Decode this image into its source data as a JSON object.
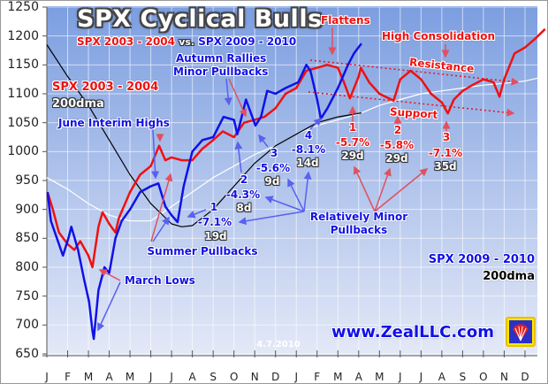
{
  "title": "SPX Cyclical Bulls",
  "subtitle": {
    "left": "SPX 2003 - 2004",
    "vs": "vs.",
    "right": "SPX 2009 - 2010"
  },
  "legend": {
    "red_label": "SPX 2003 - 2004",
    "red_dma": "200dma",
    "blue_label": "SPX 2009 - 2010",
    "blue_dma": "200dma"
  },
  "annotations": {
    "june_highs": "June Interim Highs",
    "autumn_1": "Autumn Rallies",
    "autumn_2": "Minor Pullbacks",
    "flattens": "Flattens",
    "high_consolidation": "High Consolidation",
    "resistance": "Resistance",
    "support": "Support",
    "relatively_1": "Relatively Minor",
    "relatively_2": "Pullbacks",
    "summer": "Summer Pullbacks",
    "march_lows": "March Lows",
    "website": "www.ZealLLC.com",
    "date": "4.7.2010",
    "logo_text": "ZZ"
  },
  "pullbacks_2009": [
    {
      "num": "1",
      "pct": "-7.1%",
      "days": "19d"
    },
    {
      "num": "2",
      "pct": "-4.3%",
      "days": "8d"
    },
    {
      "num": "3",
      "pct": "-5.6%",
      "days": "9d"
    },
    {
      "num": "4",
      "pct": "-8.1%",
      "days": "14d"
    }
  ],
  "pullbacks_2004": [
    {
      "num": "1",
      "pct": "-5.7%",
      "days": "29d"
    },
    {
      "num": "2",
      "pct": "-5.8%",
      "days": "29d"
    },
    {
      "num": "3",
      "pct": "-7.1%",
      "days": "35d"
    }
  ],
  "colors": {
    "spx_2003": "#f01010",
    "spx_2009": "#1010e8",
    "dma_2003": "#ffffff",
    "dma_2009": "#000000",
    "background_top": "#7c9ee0",
    "background_bottom": "#e4e9f7"
  },
  "chart_data": {
    "type": "line",
    "title": "SPX Cyclical Bulls",
    "ylim": [
      650,
      1250
    ],
    "yticks": [
      650,
      700,
      750,
      800,
      850,
      900,
      950,
      1000,
      1050,
      1100,
      1150,
      1200,
      1250
    ],
    "xticks": [
      "J",
      "F",
      "M",
      "A",
      "M",
      "J",
      "J",
      "A",
      "S",
      "O",
      "N",
      "D",
      "J",
      "F",
      "M",
      "A",
      "M",
      "J",
      "J",
      "A",
      "S",
      "O",
      "N",
      "D"
    ],
    "grid": true,
    "series": [
      {
        "name": "SPX 2003 - 2004",
        "color": "#f01010",
        "points": [
          [
            "2003-01-02",
            930
          ],
          [
            "2003-01-10",
            900
          ],
          [
            "2003-01-19",
            860
          ],
          [
            "2003-02-01",
            840
          ],
          [
            "2003-02-10",
            830
          ],
          [
            "2003-02-18",
            845
          ],
          [
            "2003-03-01",
            820
          ],
          [
            "2003-03-07",
            800
          ],
          [
            "2003-03-16",
            870
          ],
          [
            "2003-03-22",
            895
          ],
          [
            "2003-04-01",
            875
          ],
          [
            "2003-04-10",
            860
          ],
          [
            "2003-04-15",
            885
          ],
          [
            "2003-05-01",
            930
          ],
          [
            "2003-05-16",
            960
          ],
          [
            "2003-06-01",
            975
          ],
          [
            "2003-06-13",
            1010
          ],
          [
            "2003-06-22",
            985
          ],
          [
            "2003-07-01",
            990
          ],
          [
            "2003-07-16",
            985
          ],
          [
            "2003-08-01",
            985
          ],
          [
            "2003-08-16",
            1005
          ],
          [
            "2003-09-01",
            1020
          ],
          [
            "2003-09-15",
            1035
          ],
          [
            "2003-10-01",
            1025
          ],
          [
            "2003-10-16",
            1050
          ],
          [
            "2003-11-01",
            1055
          ],
          [
            "2003-11-15",
            1060
          ],
          [
            "2003-12-01",
            1075
          ],
          [
            "2003-12-16",
            1100
          ],
          [
            "2004-01-01",
            1110
          ],
          [
            "2004-01-16",
            1140
          ],
          [
            "2004-02-01",
            1145
          ],
          [
            "2004-02-15",
            1150
          ],
          [
            "2004-03-01",
            1145
          ],
          [
            "2004-03-10",
            1120
          ],
          [
            "2004-03-19",
            1092
          ],
          [
            "2004-04-01",
            1130
          ],
          [
            "2004-04-04",
            1145
          ],
          [
            "2004-04-16",
            1120
          ],
          [
            "2004-05-01",
            1100
          ],
          [
            "2004-05-22",
            1088
          ],
          [
            "2004-06-01",
            1125
          ],
          [
            "2004-06-16",
            1140
          ],
          [
            "2004-07-01",
            1125
          ],
          [
            "2004-07-16",
            1100
          ],
          [
            "2004-08-01",
            1085
          ],
          [
            "2004-08-10",
            1066
          ],
          [
            "2004-08-19",
            1090
          ],
          [
            "2004-09-01",
            1105
          ],
          [
            "2004-09-15",
            1115
          ],
          [
            "2004-10-01",
            1125
          ],
          [
            "2004-10-16",
            1120
          ],
          [
            "2004-10-25",
            1095
          ],
          [
            "2004-11-01",
            1125
          ],
          [
            "2004-11-16",
            1170
          ],
          [
            "2004-12-01",
            1180
          ],
          [
            "2004-12-16",
            1195
          ],
          [
            "2004-12-31",
            1212
          ]
        ]
      },
      {
        "name": "SPX 2009 - 2010",
        "color": "#1010e8",
        "points": [
          [
            "2009-01-02",
            930
          ],
          [
            "2009-01-07",
            880
          ],
          [
            "2009-01-16",
            850
          ],
          [
            "2009-01-25",
            820
          ],
          [
            "2009-02-02",
            850
          ],
          [
            "2009-02-06",
            870
          ],
          [
            "2009-02-15",
            830
          ],
          [
            "2009-02-23",
            780
          ],
          [
            "2009-03-02",
            740
          ],
          [
            "2009-03-07",
            690
          ],
          [
            "2009-03-09",
            676
          ],
          [
            "2009-03-16",
            760
          ],
          [
            "2009-03-25",
            800
          ],
          [
            "2009-04-01",
            790
          ],
          [
            "2009-04-10",
            850
          ],
          [
            "2009-04-19",
            880
          ],
          [
            "2009-05-01",
            900
          ],
          [
            "2009-05-16",
            930
          ],
          [
            "2009-06-01",
            940
          ],
          [
            "2009-06-12",
            945
          ],
          [
            "2009-06-22",
            905
          ],
          [
            "2009-07-01",
            890
          ],
          [
            "2009-07-10",
            878
          ],
          [
            "2009-07-19",
            940
          ],
          [
            "2009-08-01",
            1000
          ],
          [
            "2009-08-16",
            1020
          ],
          [
            "2009-09-01",
            1025
          ],
          [
            "2009-09-16",
            1060
          ],
          [
            "2009-10-01",
            1055
          ],
          [
            "2009-10-06",
            1030
          ],
          [
            "2009-10-19",
            1090
          ],
          [
            "2009-11-02",
            1045
          ],
          [
            "2009-11-10",
            1060
          ],
          [
            "2009-11-19",
            1105
          ],
          [
            "2009-12-01",
            1100
          ],
          [
            "2009-12-16",
            1110
          ],
          [
            "2010-01-04",
            1120
          ],
          [
            "2010-01-16",
            1150
          ],
          [
            "2010-01-22",
            1140
          ],
          [
            "2010-02-01",
            1090
          ],
          [
            "2010-02-06",
            1057
          ],
          [
            "2010-02-15",
            1075
          ],
          [
            "2010-03-01",
            1110
          ],
          [
            "2010-03-16",
            1150
          ],
          [
            "2010-03-25",
            1170
          ],
          [
            "2010-04-05",
            1187
          ]
        ]
      },
      {
        "name": "SPX 2003 - 2004 200dma",
        "color": "#ffffff",
        "points": [
          [
            "2003-01-01",
            955
          ],
          [
            "2003-02-01",
            935
          ],
          [
            "2003-03-01",
            910
          ],
          [
            "2003-04-01",
            890
          ],
          [
            "2003-05-01",
            880
          ],
          [
            "2003-06-01",
            880
          ],
          [
            "2003-07-01",
            905
          ],
          [
            "2003-08-01",
            930
          ],
          [
            "2003-09-01",
            955
          ],
          [
            "2003-10-01",
            975
          ],
          [
            "2003-11-01",
            995
          ],
          [
            "2003-12-01",
            1010
          ],
          [
            "2004-01-01",
            1030
          ],
          [
            "2004-02-01",
            1045
          ],
          [
            "2004-03-01",
            1055
          ],
          [
            "2004-04-01",
            1065
          ],
          [
            "2004-05-01",
            1080
          ],
          [
            "2004-06-01",
            1090
          ],
          [
            "2004-07-01",
            1100
          ],
          [
            "2004-08-01",
            1105
          ],
          [
            "2004-09-01",
            1110
          ],
          [
            "2004-10-01",
            1115
          ],
          [
            "2004-11-01",
            1118
          ],
          [
            "2004-12-01",
            1122
          ],
          [
            "2004-12-31",
            1130
          ]
        ]
      },
      {
        "name": "SPX 2009 - 2010 200dma",
        "color": "#000000",
        "points": [
          [
            "2009-01-01",
            1185
          ],
          [
            "2009-02-01",
            1130
          ],
          [
            "2009-03-01",
            1080
          ],
          [
            "2009-04-01",
            1020
          ],
          [
            "2009-05-01",
            960
          ],
          [
            "2009-06-01",
            910
          ],
          [
            "2009-07-01",
            875
          ],
          [
            "2009-07-16",
            870
          ],
          [
            "2009-08-01",
            872
          ],
          [
            "2009-09-01",
            900
          ],
          [
            "2009-10-01",
            940
          ],
          [
            "2009-11-01",
            980
          ],
          [
            "2009-12-01",
            1010
          ],
          [
            "2010-01-01",
            1030
          ],
          [
            "2010-02-01",
            1050
          ],
          [
            "2010-03-01",
            1060
          ],
          [
            "2010-04-05",
            1067
          ]
        ]
      }
    ]
  }
}
